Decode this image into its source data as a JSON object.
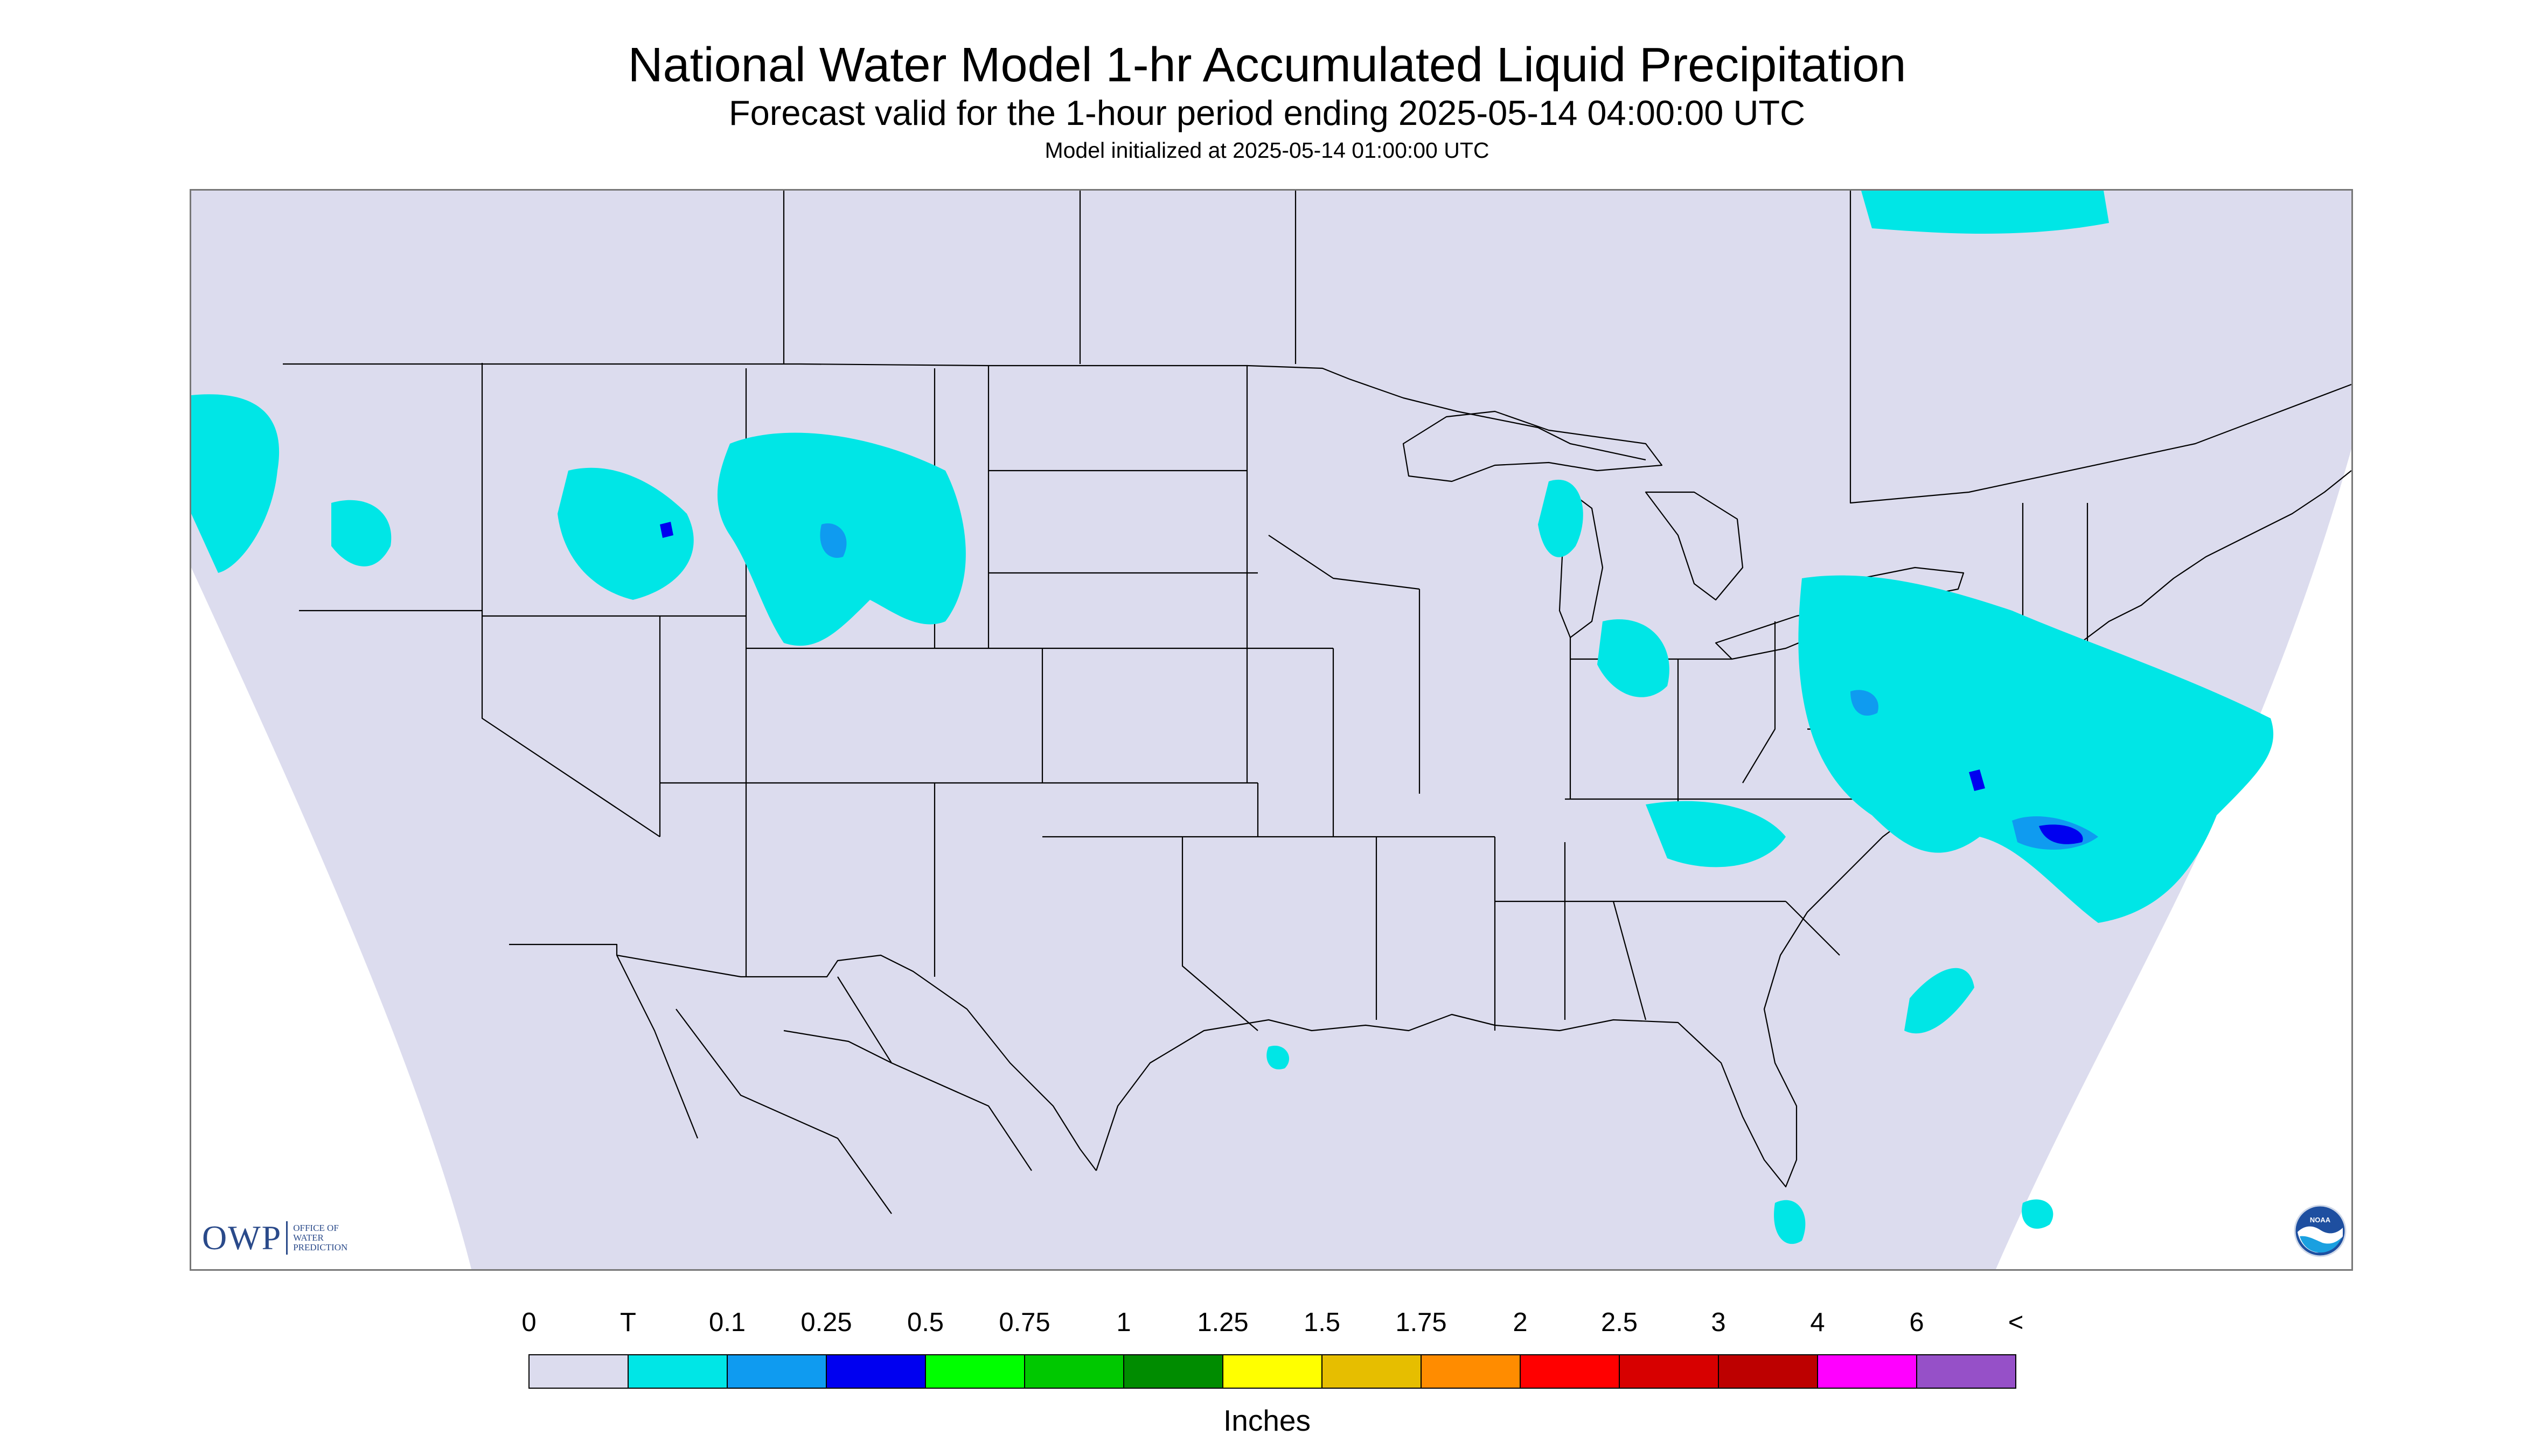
{
  "header": {
    "title": "National Water Model 1-hr Accumulated Liquid Precipitation",
    "subtitle": "Forecast valid for the 1-hour period ending 2025-05-14 04:00:00 UTC",
    "init_line": "Model initialized at 2025-05-14 01:00:00 UTC"
  },
  "map": {
    "background_color": "#dcdcee",
    "outside_color": "#ffffff",
    "boundary_color": "#000000",
    "precip_colors": {
      "trace": "#00e6e6",
      "light": "#0f9bf0",
      "moderate": "#0000f0"
    }
  },
  "logos": {
    "owp_text": "OWP",
    "owp_sub": [
      "OFFICE OF",
      "WATER",
      "PREDICTION"
    ],
    "noaa_icon": "noaa-logo-icon",
    "noaa_text": "NOAA"
  },
  "colorbar": {
    "ticks": [
      "0",
      "T",
      "0.1",
      "0.25",
      "0.5",
      "0.75",
      "1",
      "1.25",
      "1.5",
      "1.75",
      "2",
      "2.5",
      "3",
      "4",
      "6",
      "<"
    ],
    "colors": [
      "#dcdcee",
      "#00e6e6",
      "#0f9bf0",
      "#0000f0",
      "#00ff00",
      "#00c800",
      "#008c00",
      "#ffff00",
      "#e6be00",
      "#ff8c00",
      "#ff0000",
      "#d70000",
      "#bd0000",
      "#ff00ff",
      "#9650c8"
    ],
    "units_label": "Inches"
  }
}
